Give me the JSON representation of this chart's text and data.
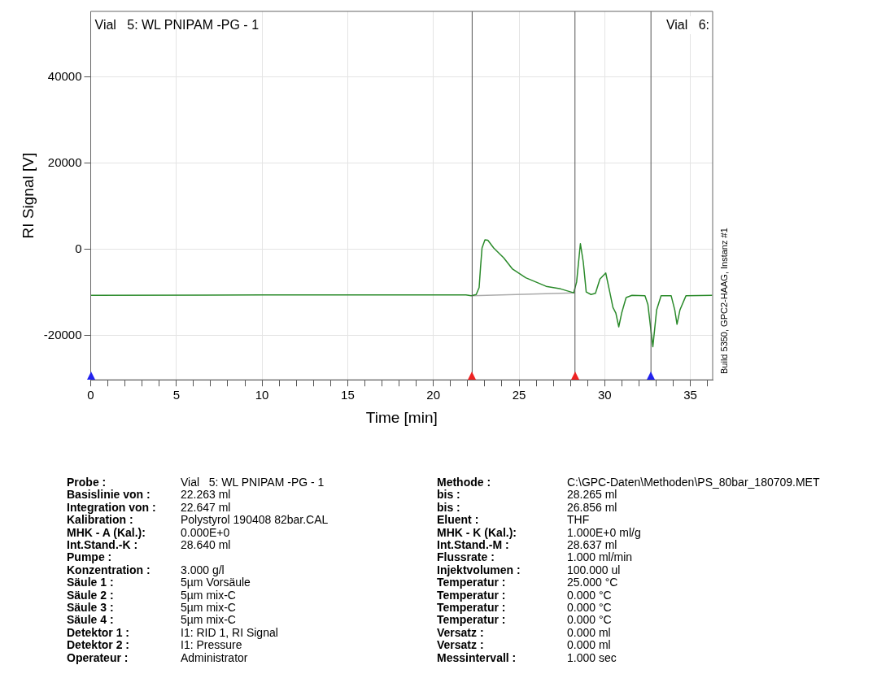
{
  "chart_data": {
    "type": "line",
    "xlabel": "Time [min]",
    "ylabel": "RI Signal [V]",
    "xlim": [
      0,
      36.3
    ],
    "ylim": [
      -30300,
      55200
    ],
    "xticks": [
      0,
      {
        "value": 1,
        "label": null
      },
      {
        "value": 2,
        "label": null
      },
      {
        "value": 3,
        "label": null
      },
      {
        "value": 4,
        "label": null
      },
      5,
      {
        "value": 6,
        "label": null
      },
      {
        "value": 7,
        "label": null
      },
      {
        "value": 8,
        "label": null
      },
      {
        "value": 9,
        "label": null
      },
      10,
      {
        "value": 11,
        "label": null
      },
      {
        "value": 12,
        "label": null
      },
      {
        "value": 13,
        "label": null
      },
      {
        "value": 14,
        "label": null
      },
      15,
      {
        "value": 16,
        "label": null
      },
      {
        "value": 17,
        "label": null
      },
      {
        "value": 18,
        "label": null
      },
      {
        "value": 19,
        "label": null
      },
      20,
      {
        "value": 21,
        "label": null
      },
      {
        "value": 22,
        "label": null
      },
      {
        "value": 23,
        "label": null
      },
      {
        "value": 24,
        "label": null
      },
      25,
      {
        "value": 26,
        "label": null
      },
      {
        "value": 27,
        "label": null
      },
      {
        "value": 28,
        "label": null
      },
      {
        "value": 29,
        "label": null
      },
      30,
      {
        "value": 31,
        "label": null
      },
      {
        "value": 32,
        "label": null
      },
      {
        "value": 33,
        "label": null
      },
      {
        "value": 34,
        "label": null
      },
      35,
      {
        "value": 36,
        "label": null
      }
    ],
    "yticks": [
      -20000,
      0,
      20000,
      40000
    ],
    "grid": true,
    "legend": false,
    "marker": "none",
    "line_style": "solid",
    "series": [
      {
        "color": "#2a8a2a",
        "x": [
          0,
          10,
          21.9,
          22.21,
          22.5,
          22.67,
          22.75,
          22.84,
          23.01,
          23.18,
          23.52,
          24.11,
          24.62,
          25.39,
          26.58,
          27.43,
          28.19,
          28.36,
          28.58,
          28.75,
          28.92,
          29.2,
          29.46,
          29.72,
          30.06,
          30.31,
          30.48,
          30.65,
          30.82,
          30.99,
          31.25,
          31.59,
          32.35,
          32.52,
          32.81,
          33.03,
          33.29,
          33.88,
          34.09,
          34.22,
          34.39,
          34.74,
          36.27
        ],
        "values": [
          -10700,
          -10600,
          -10600,
          -10800,
          -10500,
          -8900,
          -4300,
          300,
          2200,
          2100,
          300,
          -2000,
          -4600,
          -6600,
          -8600,
          -9200,
          -10100,
          -7600,
          1300,
          -3000,
          -9900,
          -10500,
          -10200,
          -6900,
          -5500,
          -10200,
          -13500,
          -14800,
          -18000,
          -14800,
          -11200,
          -10700,
          -10800,
          -12800,
          -22600,
          -14100,
          -10800,
          -10800,
          -14100,
          -17400,
          -14100,
          -10800,
          -10700
        ]
      },
      {
        "color": "#aaaaaa",
        "x": [
          22.263,
          28.265
        ],
        "values": [
          -10800,
          -10100
        ]
      }
    ],
    "ref_lines": [
      {
        "axis": "x",
        "value": 22.263,
        "color": "#555555"
      },
      {
        "axis": "x",
        "value": 28.265,
        "color": "#555555"
      },
      {
        "axis": "x",
        "value": 32.7,
        "color": "#555555"
      }
    ],
    "annotations": [
      "Vial   5: WL PNIPAM -PG - 1",
      "Vial   6:",
      "Build 5350, GPC2-HAAG, Instanz #1",
      "Probe :",
      "Vial   5: WL PNIPAM -PG - 1",
      "Basislinie von :",
      "22.263 ml",
      "Integration von :",
      "22.647 ml",
      "Kalibration :",
      "Polystyrol 190408 82bar.CAL",
      "MHK - A (Kal.):",
      "0.000E+0",
      "Int.Stand.-K :",
      "28.640 ml",
      "Pumpe :",
      null,
      "Konzentration :",
      "3.000 g/l",
      "Säule 1 :",
      "5µm Vorsäule",
      "Säule 2 :",
      "5µm mix-C",
      "Säule 3 :",
      "5µm mix-C",
      "Säule 4 :",
      "5µm mix-C",
      "Detektor 1 :",
      "I1: RID 1, RI Signal",
      "Detektor 2 :",
      "I1: Pressure",
      "Operateur :",
      "Administrator",
      "Methode :",
      "C:\\GPC-Daten\\Methoden\\PS_80bar_180709.MET",
      "bis :",
      "28.265 ml",
      "bis :",
      "26.856 ml",
      "Eluent :",
      "THF",
      "MHK - K (Kal.):",
      "1.000E+0 ml/g",
      "Int.Stand.-M :",
      "28.637 ml",
      "Flussrate :",
      "1.000 ml/min",
      "Injektvolumen :",
      "100.000 ul",
      "Temperatur :",
      "25.000 °C",
      "Temperatur :",
      "0.000 °C",
      "Temperatur :",
      "0.000 °C",
      "Temperatur :",
      "0.000 °C",
      "Versatz :",
      "0.000 ml",
      "Versatz :",
      "0.000 ml",
      "Messintervall :",
      "1.000 sec"
    ]
  }
}
